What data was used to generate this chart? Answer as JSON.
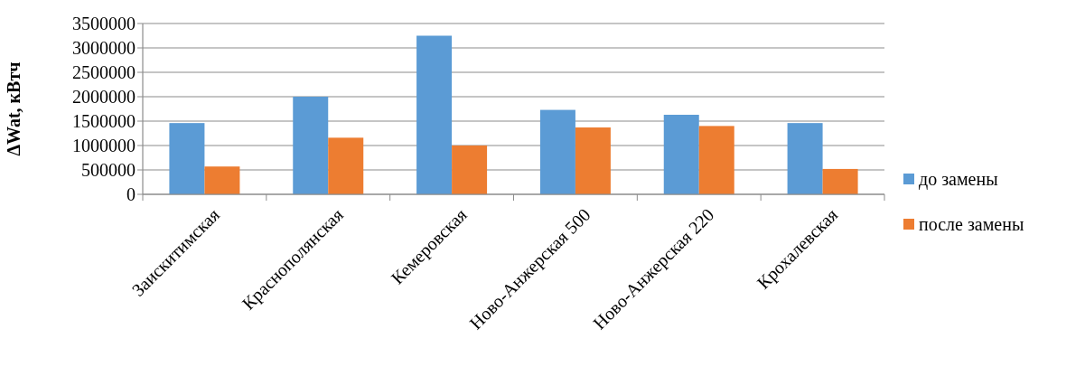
{
  "chart_data": {
    "type": "bar",
    "ylabel": "ΔWat, кВтч",
    "categories": [
      "Заискитимская",
      "Краснополянская",
      "Кемеровская",
      "Ново-Анжерская 500",
      "Ново-Анжерская 220",
      "Крохалевская"
    ],
    "series": [
      {
        "name": "до замены",
        "color": "#5b9bd5",
        "values": [
          1460000,
          2000000,
          3250000,
          1730000,
          1630000,
          1460000
        ]
      },
      {
        "name": "после замены",
        "color": "#ed7d31",
        "values": [
          570000,
          1160000,
          1000000,
          1370000,
          1400000,
          520000
        ]
      }
    ],
    "ylim": [
      0,
      3500000
    ],
    "yticks": [
      0,
      500000,
      1000000,
      1500000,
      2000000,
      2500000,
      3000000,
      3500000
    ],
    "grid": "y",
    "legend": "right"
  }
}
